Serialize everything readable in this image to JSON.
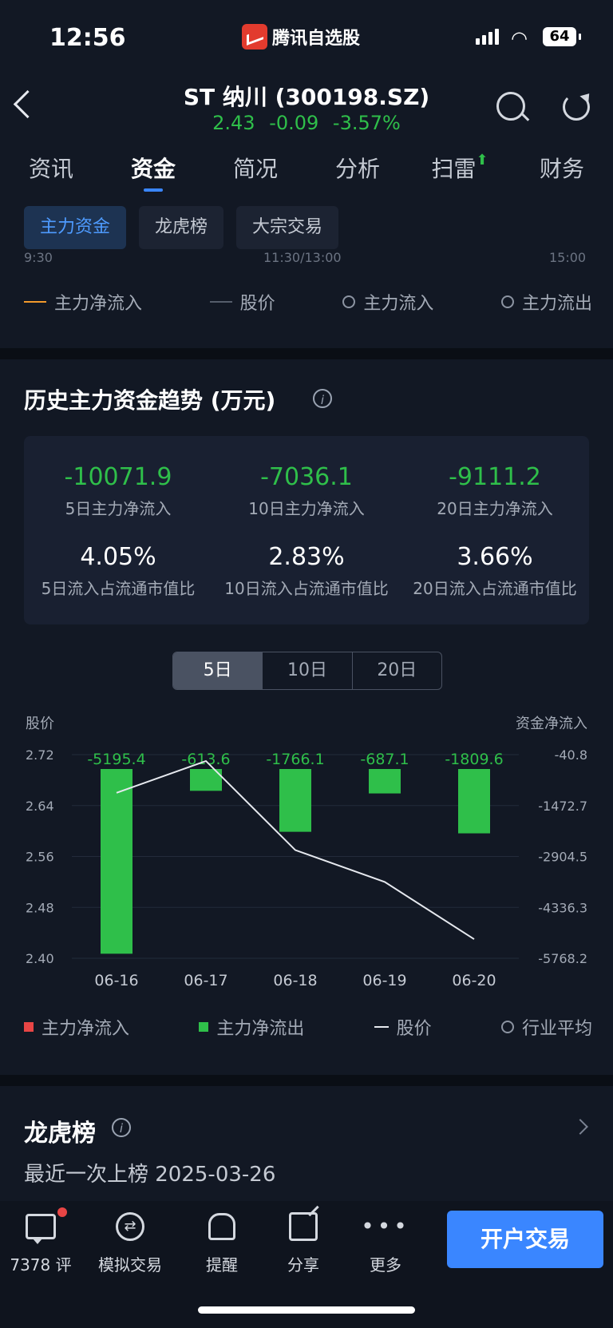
{
  "status_bar": {
    "time": "12:56",
    "app_name": "腾讯自选股",
    "battery": "64"
  },
  "header": {
    "title": "ST 纳川 (300198.SZ)",
    "quote": "2.43  -0.09  -3.57%"
  },
  "tabs": [
    {
      "label": "资讯"
    },
    {
      "label": "资金"
    },
    {
      "label": "简况"
    },
    {
      "label": "分析"
    },
    {
      "label": "扫雷"
    },
    {
      "label": "财务"
    }
  ],
  "subtabs": [
    {
      "label": "主力资金"
    },
    {
      "label": "龙虎榜"
    },
    {
      "label": "大宗交易"
    }
  ],
  "intraday_axis": {
    "t0": "9:30",
    "t1": "11:30/13:00",
    "t2": "15:00"
  },
  "legend_top": {
    "net_inflow": "主力净流入",
    "price": "股价",
    "inflow": "主力流入",
    "outflow": "主力流出"
  },
  "history": {
    "title": "历史主力资金趋势 (万元)",
    "stats": [
      {
        "value": "-10071.9",
        "label": "5日主力净流入",
        "pct": "4.05%",
        "pct_label": "5日流入占流通市值比"
      },
      {
        "value": "-7036.1",
        "label": "10日主力净流入",
        "pct": "2.83%",
        "pct_label": "10日流入占流通市值比"
      },
      {
        "value": "-9111.2",
        "label": "20日主力净流入",
        "pct": "3.66%",
        "pct_label": "20日流入占流通市值比"
      }
    ],
    "periods": [
      "5日",
      "10日",
      "20日"
    ],
    "active_period": "5日"
  },
  "chart_data": {
    "type": "bar",
    "ylabel_left": "股价",
    "ylabel_right": "资金净流入",
    "categories": [
      "06-16",
      "06-17",
      "06-18",
      "06-19",
      "06-20"
    ],
    "series": [
      {
        "name": "主力净流出",
        "values": [
          -5195.4,
          -613.6,
          -1766.1,
          -687.1,
          -1809.6
        ],
        "color": "#2fbf4a",
        "labels": [
          "-5195.4",
          "-613.6",
          "-1766.1",
          "-687.1",
          "-1809.6"
        ]
      },
      {
        "name": "股价",
        "type": "line",
        "values": [
          2.66,
          2.71,
          2.57,
          2.52,
          2.43
        ],
        "color": "#e6e9ef"
      }
    ],
    "left_ticks": [
      "2.72",
      "2.64",
      "2.56",
      "2.48",
      "2.40"
    ],
    "left_range": [
      2.4,
      2.72
    ],
    "right_ticks": [
      "-40.8",
      "-1472.7",
      "-2904.5",
      "-4336.3",
      "-5768.2"
    ],
    "right_range": [
      -5768.2,
      -40.8
    ]
  },
  "legend_bottom": {
    "net_inflow": "主力净流入",
    "net_outflow": "主力净流出",
    "price": "股价",
    "industry_avg": "行业平均"
  },
  "dragon": {
    "title": "龙虎榜",
    "last_listed": "最近一次上榜 2025-03-26"
  },
  "bottom_bar": {
    "comments": "7378 评",
    "sim_trade": "模拟交易",
    "alert": "提醒",
    "share": "分享",
    "more": "更多",
    "open_account": "开户交易"
  }
}
